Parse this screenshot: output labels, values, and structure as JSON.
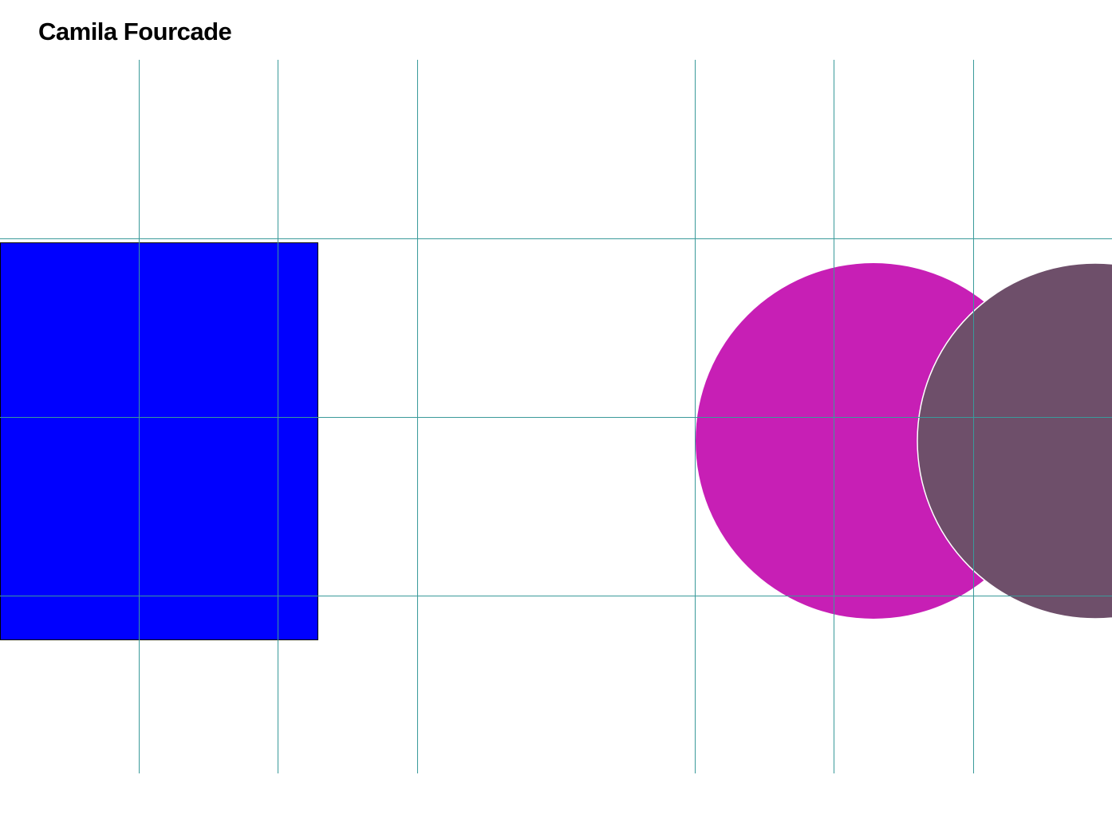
{
  "title": "Camila Fourcade",
  "colors": {
    "rectangle": "#0000ff",
    "circle_left": "#c71fb5",
    "circle_right": "#6e4f6a",
    "grid": "#3a9a9a"
  }
}
